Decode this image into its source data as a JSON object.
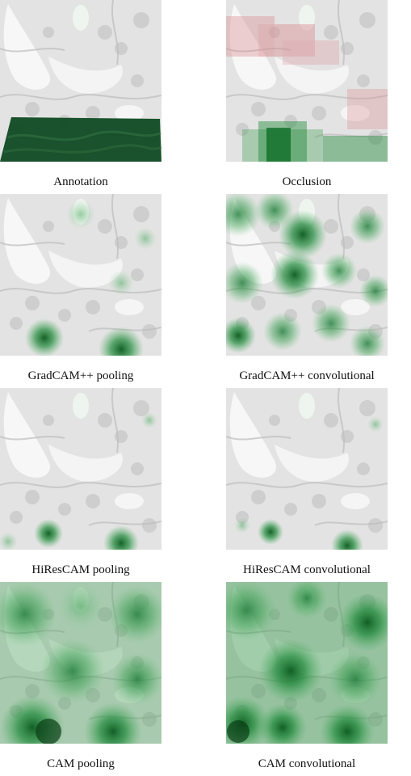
{
  "figure": {
    "panels": [
      {
        "id": "annotation",
        "caption": "Annotation",
        "overlay": "annotation-mask"
      },
      {
        "id": "occlusion",
        "caption": "Occlusion",
        "overlay": "occlusion-blocks"
      },
      {
        "id": "gradcampp-pooling",
        "caption": "GradCAM++ pooling",
        "overlay": "sparse-heatmap"
      },
      {
        "id": "gradcampp-convolutional",
        "caption": "GradCAM++ convolutional",
        "overlay": "diffuse-heatmap"
      },
      {
        "id": "hirescam-pooling",
        "caption": "HiResCAM pooling",
        "overlay": "sparse-heatmap"
      },
      {
        "id": "hirescam-convolutional",
        "caption": "HiResCAM convolutional",
        "overlay": "sparse-heatmap"
      },
      {
        "id": "cam-pooling",
        "caption": "CAM pooling",
        "overlay": "dense-heatmap"
      },
      {
        "id": "cam-convolutional",
        "caption": "CAM convolutional",
        "overlay": "dense-heatmap"
      }
    ],
    "colors": {
      "tissue_base": "#e3e3e3",
      "tissue_dark": "#c2c2c2",
      "background_white": "#f7f7f7",
      "annotation_green": "#0e4a22",
      "heat_green": "#1f8a3a",
      "heat_dark_green": "#0a5a1e",
      "occlusion_red": "#d98a8f"
    }
  }
}
